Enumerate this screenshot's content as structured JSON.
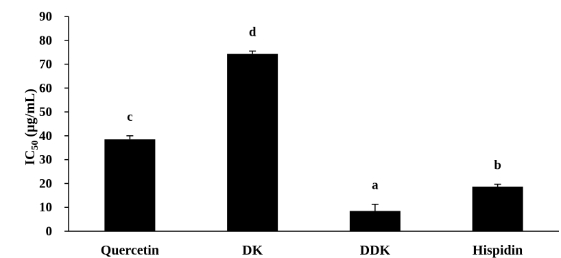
{
  "chart_data": {
    "type": "bar",
    "title": "",
    "xlabel": "",
    "ylabel": {
      "main": "IC",
      "sub": "50",
      "rest": " (µg/mL)"
    },
    "categories": [
      "Quercetin",
      "DK",
      "DDK",
      "Hispidin"
    ],
    "values": [
      38.5,
      74.3,
      8.5,
      18.7
    ],
    "errors": [
      1.5,
      1.2,
      2.8,
      1.0
    ],
    "significance": [
      "c",
      "d",
      "a",
      "b"
    ],
    "ylim": [
      0,
      90
    ],
    "yticks": [
      0,
      10,
      20,
      30,
      40,
      50,
      60,
      70,
      80,
      90
    ],
    "grid": false,
    "bar_color": "#000000"
  }
}
